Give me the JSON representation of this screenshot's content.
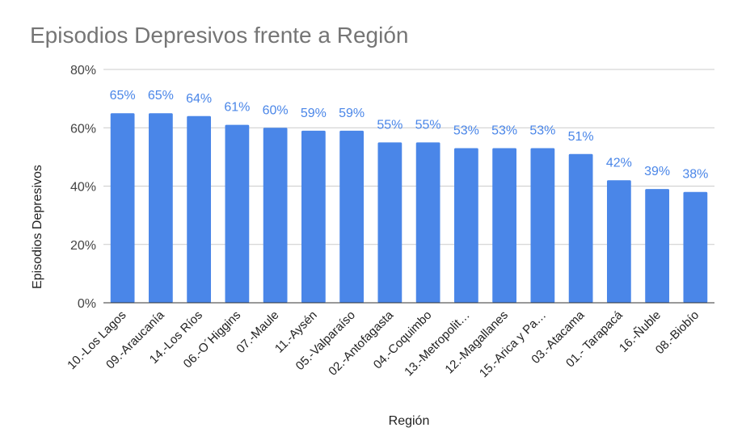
{
  "chart_data": {
    "type": "bar",
    "title": "Episodios Depresivos frente a Región",
    "xlabel": "Región",
    "ylabel": "Episodios Depresivos",
    "ylim": [
      0,
      80
    ],
    "y_ticks": [
      "0%",
      "20%",
      "40%",
      "60%",
      "80%"
    ],
    "y_tick_values": [
      0,
      20,
      40,
      60,
      80
    ],
    "categories": [
      "10.-Los Lagos",
      "09.-Araucanía",
      "14.-Los Ríos",
      "06.-O´Higgins",
      "07.-Maule",
      "11.-Aysén",
      "05.-Valparaíso",
      "02.-Antofagasta",
      "04.-Coquimbo",
      "13.-Metropolit…",
      "12.-Magallanes",
      "15.-Arica y Pa…",
      "03.-Atacama",
      "01.- Tarapacá",
      "16.-Ñuble",
      "08.-Biobío"
    ],
    "values": [
      65,
      65,
      64,
      61,
      60,
      59,
      59,
      55,
      55,
      53,
      53,
      53,
      51,
      42,
      39,
      38
    ],
    "data_labels": [
      "65%",
      "65%",
      "64%",
      "61%",
      "60%",
      "59%",
      "59%",
      "55%",
      "55%",
      "53%",
      "53%",
      "53%",
      "51%",
      "42%",
      "39%",
      "38%"
    ],
    "grid": true,
    "legend": "none",
    "colors": {
      "bar": "#4a86e8",
      "label": "#4a86e8"
    }
  }
}
